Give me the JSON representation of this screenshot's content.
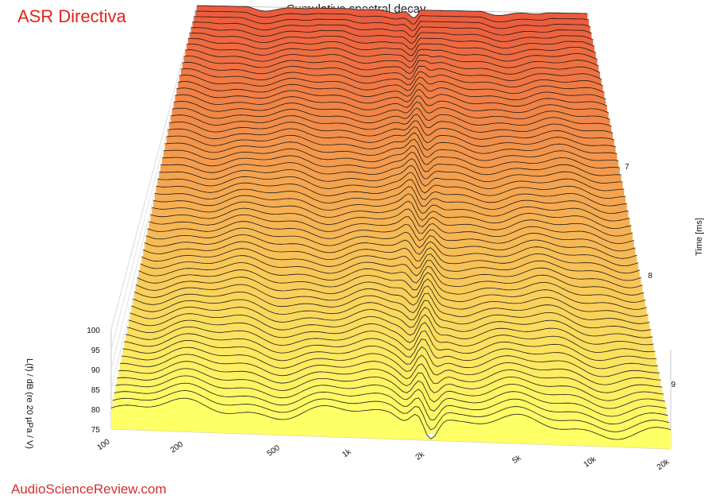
{
  "header": {
    "brand": "ASR Directiva",
    "title": "Cumulative spectral decay"
  },
  "footer": {
    "site": "AudioScienceReview.com"
  },
  "colors": {
    "brand": "#e2231a",
    "site": "#d32f2f",
    "front": "#ffff66",
    "back": "#ec5a3c",
    "outline": "#1a1a1a",
    "frame": "#c8c8c8"
  },
  "chart_data": {
    "type": "waterfall",
    "title": "Cumulative spectral decay",
    "xlabel": "",
    "ylabel": "Time [ms]",
    "zlabel": "L(f) / dB (re 20 µPa / V)",
    "x_scale": "log",
    "x_ticks": [
      {
        "value": 100,
        "label": "100"
      },
      {
        "value": 200,
        "label": "200"
      },
      {
        "value": 500,
        "label": "500"
      },
      {
        "value": 1000,
        "label": "1k"
      },
      {
        "value": 2000,
        "label": "2k"
      },
      {
        "value": 5000,
        "label": "5k"
      },
      {
        "value": 10000,
        "label": "10k"
      },
      {
        "value": 20000,
        "label": "20k"
      }
    ],
    "y_ticks": [
      {
        "value": 7,
        "label": "7"
      },
      {
        "value": 8,
        "label": "8"
      },
      {
        "value": 9,
        "label": "9"
      }
    ],
    "z_ticks": [
      {
        "value": 100,
        "label": "100"
      },
      {
        "value": 95,
        "label": "95"
      },
      {
        "value": 90,
        "label": "90"
      },
      {
        "value": 85,
        "label": "85"
      },
      {
        "value": 80,
        "label": "80"
      },
      {
        "value": 75,
        "label": "75"
      }
    ],
    "xlim": [
      100,
      20000
    ],
    "zlim": [
      75,
      100
    ],
    "time_range_ms": [
      6.0,
      9.6
    ],
    "slice_count": 60,
    "grid": true
  }
}
